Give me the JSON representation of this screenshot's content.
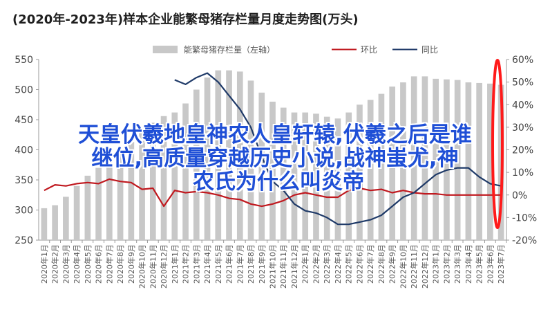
{
  "page": {
    "title": "(2020年-2023年)样本企业能繁母猪存栏量月度走势图(万头)"
  },
  "overlay": {
    "line1": "天皇伏羲地皇神农人皇轩辕,伏羲之后是谁",
    "line2": "继位,高质量穿越历史小说,战神蚩尤,神",
    "line3": "农氏为什么叫炎帝"
  },
  "chart_data": {
    "type": "bar",
    "title": "(2020年-2023年)样本企业能繁母猪存栏量月度走势图(万头)",
    "legend_position": "top",
    "grid": false,
    "colors": {
      "bar": "#c8c8c8",
      "yoy": "#c0191f",
      "mom": "#1f3a68",
      "highlight": "#ff1a1a"
    },
    "categories": [
      "2020年1月",
      "2020年2月",
      "2020年3月",
      "2020年4月",
      "2020年5月",
      "2020年6月",
      "2020年7月",
      "2020年8月",
      "2020年9月",
      "2020年10月",
      "2020年11月",
      "2020年12月",
      "2021年1月",
      "2021年2月",
      "2021年3月",
      "2021年4月",
      "2021年5月",
      "2021年6月",
      "2021年7月",
      "2021年8月",
      "2021年9月",
      "2021年10月",
      "2021年11月",
      "2021年12月",
      "2022年1月",
      "2022年2月",
      "2022年3月",
      "2022年4月",
      "2022年5月",
      "2022年6月",
      "2022年7月",
      "2022年8月",
      "2022年9月",
      "2022年10月",
      "2022年11月",
      "2022年12月",
      "2023年1月",
      "2023年2月",
      "2023年3月",
      "2023年4月",
      "2023年5月",
      "2023年6月",
      "2023年7月"
    ],
    "y_left": {
      "ticks": [
        "250",
        "300",
        "350",
        "400",
        "450",
        "500",
        "550"
      ],
      "range": [
        250,
        550
      ]
    },
    "y_right": {
      "ticks": [
        "-20%",
        "-10%",
        "0%",
        "10%",
        "20%",
        "30%",
        "40%",
        "50%",
        "60%"
      ],
      "range": [
        -20,
        60
      ]
    },
    "series": [
      {
        "name": "能繁母猪存栏量（左轴）",
        "kind": "bar",
        "axis": "left",
        "values": [
          303,
          308,
          322,
          340,
          357,
          370,
          385,
          400,
          413,
          430,
          445,
          456,
          462,
          477,
          500,
          520,
          532,
          532,
          530,
          515,
          495,
          480,
          470,
          462,
          462,
          460,
          455,
          452,
          462,
          475,
          483,
          493,
          505,
          512,
          522,
          522,
          518,
          517,
          516,
          512,
          511,
          510,
          508
        ]
      },
      {
        "name": "环比",
        "kind": "line",
        "axis": "right",
        "values": [
          2,
          4.5,
          4,
          5,
          5.5,
          5,
          7,
          6,
          5.5,
          2.5,
          3,
          -5,
          2,
          1,
          1.5,
          1,
          0,
          -1.5,
          -2,
          -4,
          -5,
          -4,
          -2.5,
          0,
          1,
          0,
          -1,
          -1,
          2,
          3,
          2,
          2.5,
          1,
          2,
          1,
          0.5,
          0.5,
          0,
          0,
          0,
          0,
          0,
          0
        ]
      },
      {
        "name": "同比",
        "kind": "line",
        "axis": "right",
        "values": [
          null,
          null,
          null,
          null,
          null,
          null,
          null,
          null,
          null,
          null,
          null,
          null,
          51,
          49,
          52,
          54,
          50,
          44,
          38,
          30,
          17,
          6,
          2,
          -4,
          -7,
          -8,
          -10,
          -13,
          -13,
          -12,
          -11,
          -9,
          -5,
          -1,
          1,
          5,
          9,
          11,
          12,
          12,
          8,
          5,
          4
        ]
      }
    ]
  }
}
